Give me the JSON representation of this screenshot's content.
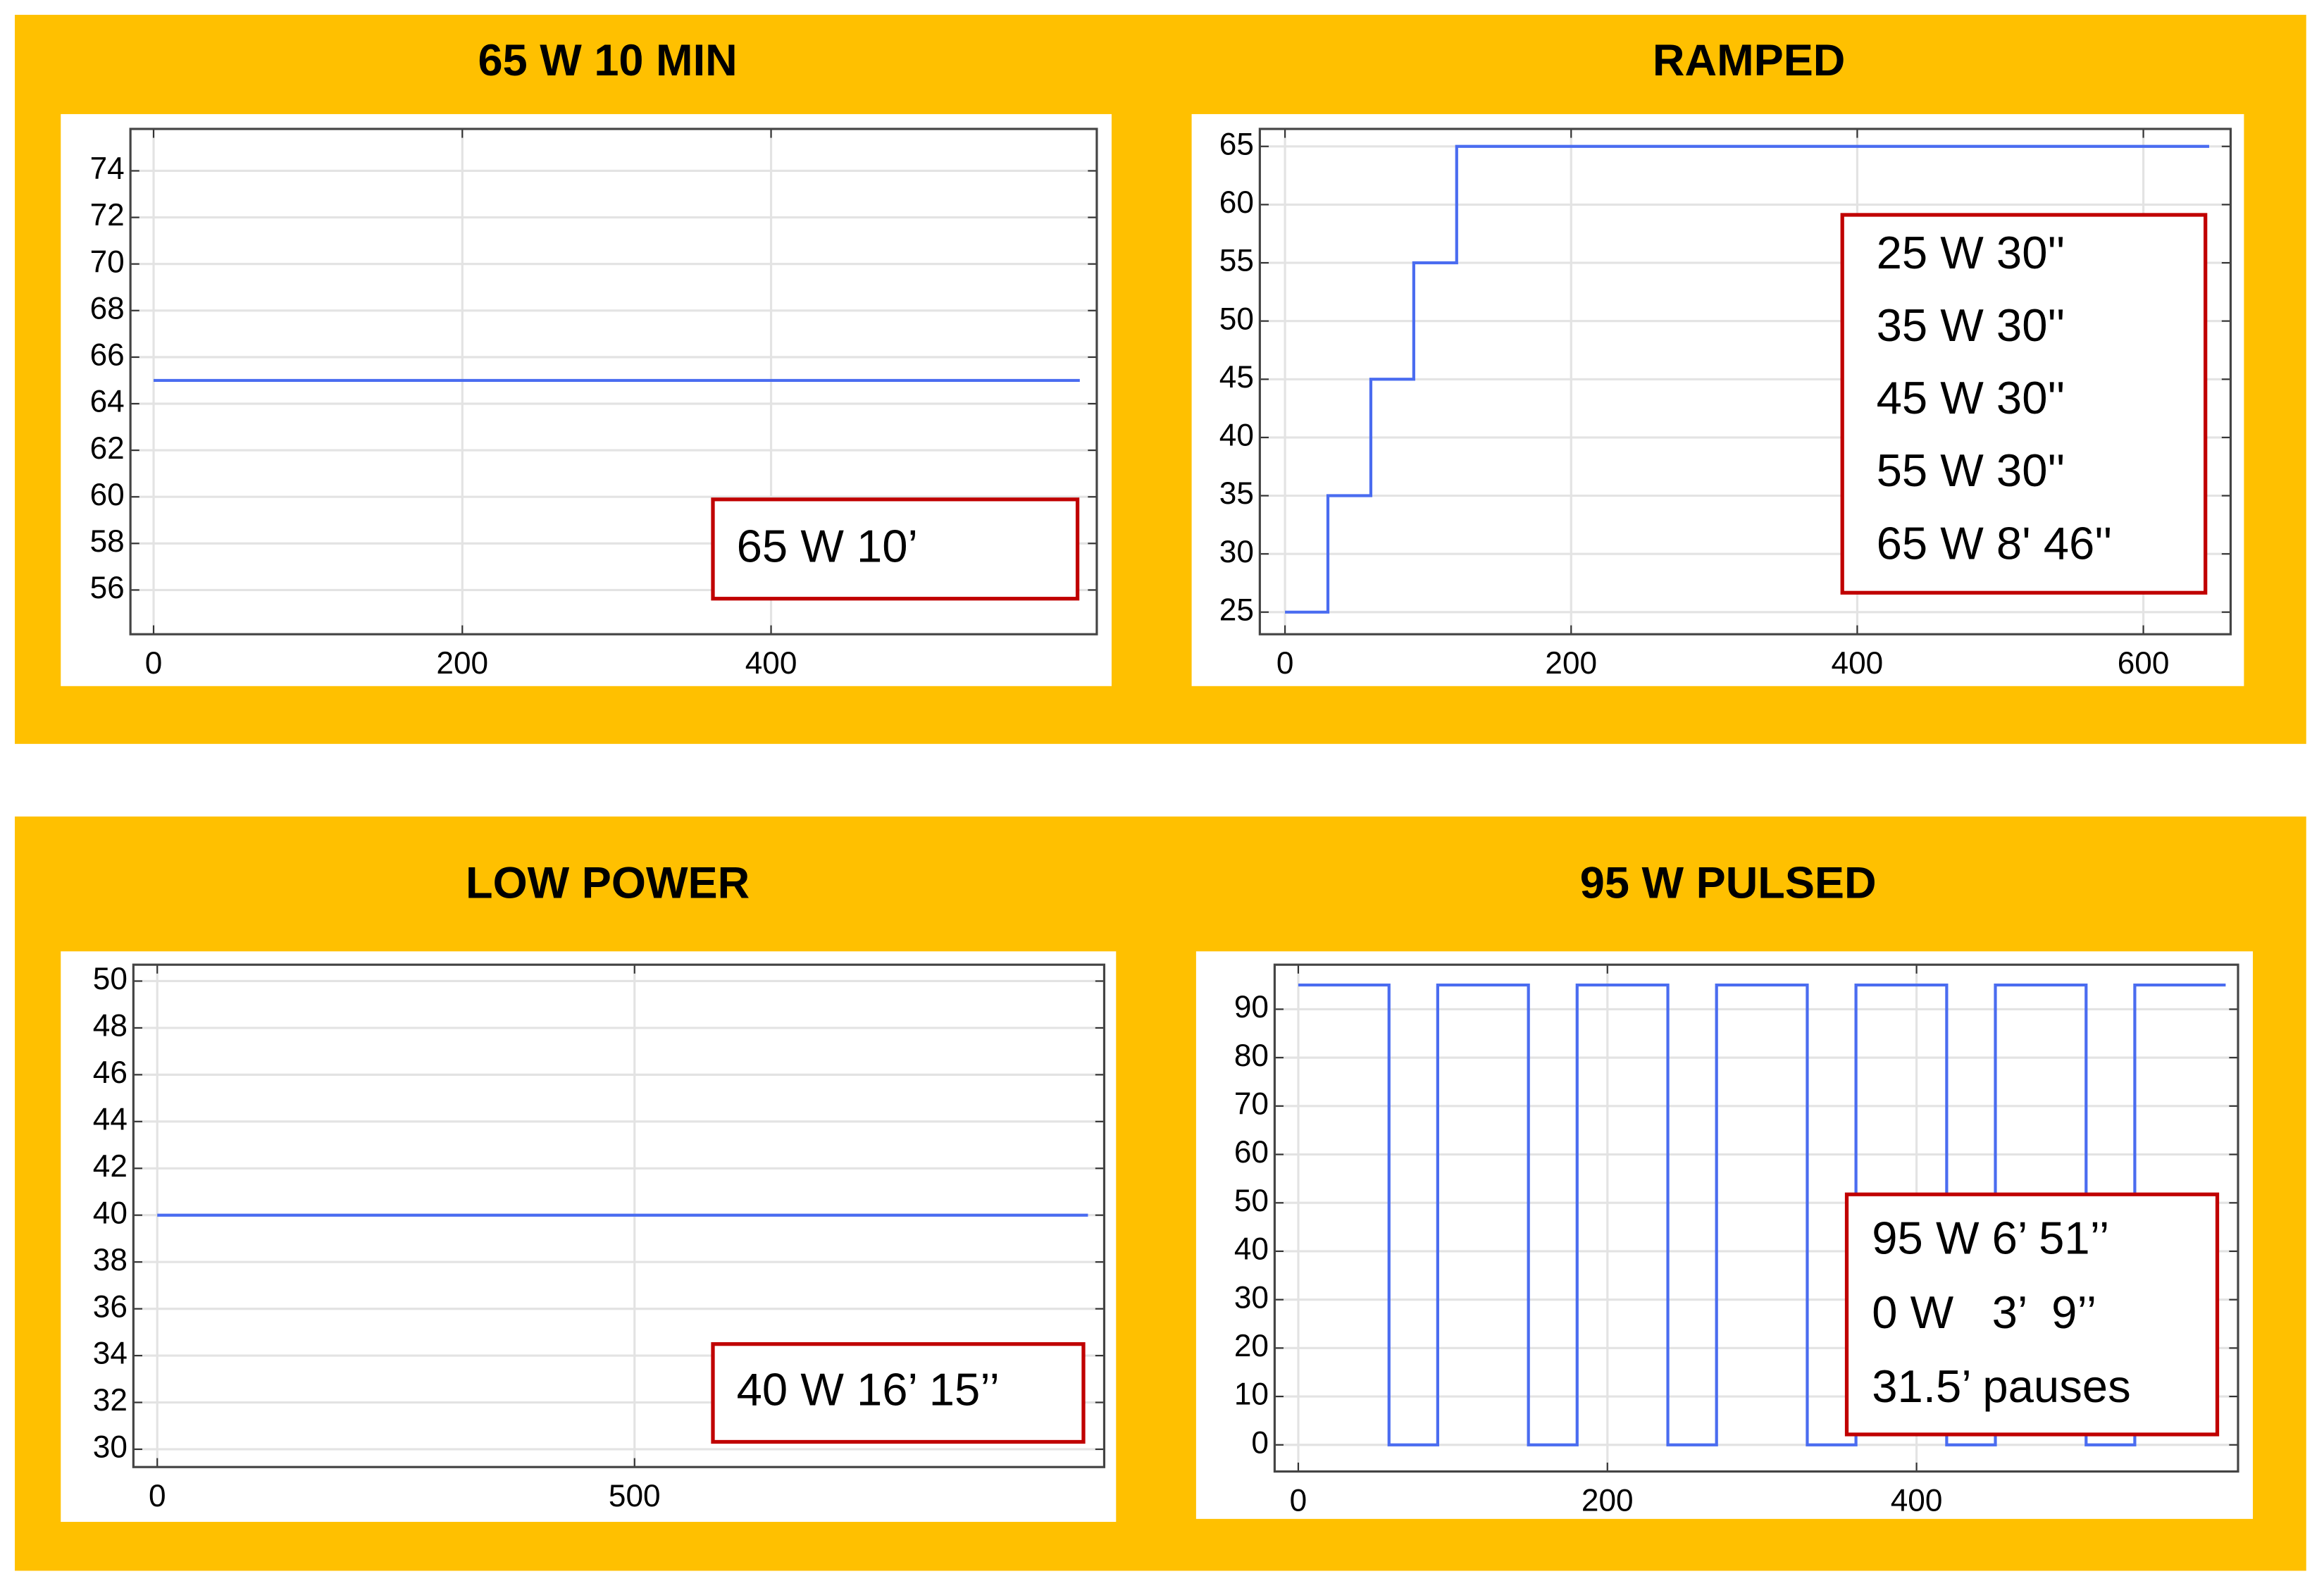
{
  "chart_data": [
    {
      "type": "line",
      "title": "65 W 10 MIN",
      "color": "#4a6cf0",
      "grid": true,
      "x": [
        0,
        600
      ],
      "values": [
        65,
        65
      ],
      "xlim": [
        -15,
        611
      ],
      "ylim": [
        54.1,
        75.8
      ],
      "xticks": [
        0,
        200,
        400
      ],
      "yticks": [
        56,
        58,
        60,
        62,
        64,
        66,
        68,
        70,
        72,
        74
      ],
      "annotation": [
        "65 W 10’"
      ]
    },
    {
      "type": "line",
      "title": "RAMPED",
      "color": "#4a6cf0",
      "grid": true,
      "x": [
        0,
        30,
        30,
        60,
        60,
        90,
        90,
        120,
        120,
        646
      ],
      "values": [
        25,
        25,
        35,
        35,
        45,
        45,
        55,
        55,
        65,
        65
      ],
      "xlim": [
        -17.6,
        661
      ],
      "ylim": [
        23.1,
        66.5
      ],
      "xticks": [
        0,
        200,
        400,
        600
      ],
      "yticks": [
        25,
        30,
        35,
        40,
        45,
        50,
        55,
        60,
        65
      ],
      "annotation": [
        "25 W 30''",
        "35 W 30''",
        "45 W 30''",
        "55 W 30''",
        "65 W 8' 46''"
      ]
    },
    {
      "type": "line",
      "title": "LOW POWER",
      "color": "#4a6cf0",
      "grid": true,
      "x": [
        0,
        975
      ],
      "values": [
        40,
        40
      ],
      "xlim": [
        -25,
        992
      ],
      "ylim": [
        29.24,
        50.7
      ],
      "xticks": [
        0,
        500
      ],
      "yticks": [
        30,
        32,
        34,
        36,
        38,
        40,
        42,
        44,
        46,
        48,
        50
      ],
      "annotation": [
        "40 W 16’ 15’’"
      ]
    },
    {
      "type": "line",
      "title": "95 W PULSED",
      "color": "#4a6cf0",
      "grid": true,
      "x": [
        0,
        58.7,
        58.7,
        90.2,
        90.2,
        148.9,
        148.9,
        180.4,
        180.4,
        239.1,
        239.1,
        270.6,
        270.6,
        329.3,
        329.3,
        360.8,
        360.8,
        419.5,
        419.5,
        451,
        451,
        509.7,
        509.7,
        541.2,
        541.2,
        600
      ],
      "values": [
        95,
        95,
        0,
        0,
        95,
        95,
        0,
        0,
        95,
        95,
        0,
        0,
        95,
        95,
        0,
        0,
        95,
        95,
        0,
        0,
        95,
        95,
        0,
        0,
        95,
        95
      ],
      "xlim": [
        -15.3,
        608
      ],
      "ylim": [
        -5.5,
        99.2
      ],
      "xticks": [
        0,
        200,
        400
      ],
      "yticks": [
        0,
        10,
        20,
        30,
        40,
        50,
        60,
        70,
        80,
        90
      ],
      "annotation": [
        "95 W 6’ 51’’",
        "0 W   3’  9’’",
        "31.5’ pauses"
      ]
    }
  ]
}
